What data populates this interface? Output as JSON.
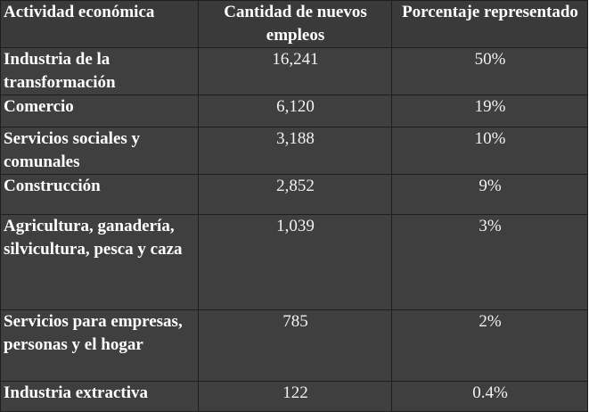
{
  "table": {
    "headers": {
      "activity": "Actividad económica",
      "count": "Cantidad de nuevos empleos",
      "percent": "Porcentaje representado"
    },
    "rows": [
      {
        "activity": "Industria de la transformación",
        "count": "16,241",
        "percent": "50%"
      },
      {
        "activity": "Comercio",
        "count": "6,120",
        "percent": "19%"
      },
      {
        "activity": "Servicios sociales y comunales",
        "count": "3,188",
        "percent": "10%"
      },
      {
        "activity": "Construcción",
        "count": "2,852",
        "percent": "9%"
      },
      {
        "activity": "Agricultura, ganadería, silvicultura, pesca y caza",
        "count": "1,039",
        "percent": "3%"
      },
      {
        "activity": "Servicios para empresas, personas y el hogar",
        "count": "785",
        "percent": "2%"
      },
      {
        "activity": "Industria extractiva",
        "count": "122",
        "percent": "0.4%"
      }
    ]
  },
  "colors": {
    "cell_background": "#3f3f3f",
    "header_background": "#3a3a3a",
    "border": "#1e1e1e",
    "text": "#ffffff"
  }
}
